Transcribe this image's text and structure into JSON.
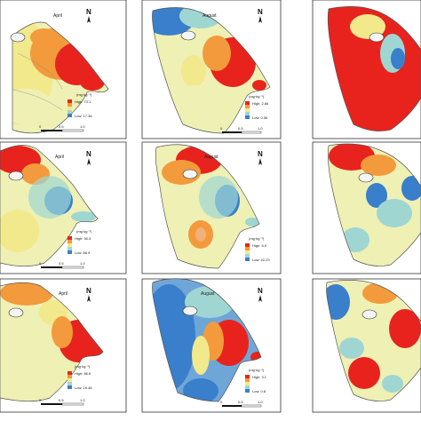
{
  "panels": [
    {
      "id": "p1",
      "month": "April",
      "legend_title": "(mg·kg⁻¹)",
      "high": "High: 73.1",
      "low": "Low: 17.36",
      "scale": [
        "0",
        "0.5",
        "1.0"
      ],
      "scheme": "east-red"
    },
    {
      "id": "p2",
      "month": "August",
      "legend_title": "(mg·kg⁻¹)",
      "high": "High: 2.66",
      "low": "Low: 0.56",
      "scale": [
        "0",
        "0.5",
        "1.0"
      ],
      "scheme": "west-blue-east-red"
    },
    {
      "id": "p3",
      "month": "",
      "legend_title": "",
      "high": "",
      "low": "",
      "scale": [
        "",
        ""
      ],
      "scheme": "mostly-red"
    },
    {
      "id": "p4",
      "month": "April",
      "legend_title": "(mg·kg⁻¹)",
      "high": "High: 95.3",
      "low": "Low: 86.5",
      "scale": [
        "0",
        "0.5",
        "1.0"
      ],
      "scheme": "north-red-east-blue"
    },
    {
      "id": "p5",
      "month": "August",
      "legend_title": "(mg·kg⁻¹)",
      "high": "High: 6.9",
      "low": "Low: 42.29",
      "scale": [
        "0",
        "0.5",
        "1.0"
      ],
      "scheme": "north-red-east-blue"
    },
    {
      "id": "p6",
      "month": "",
      "legend_title": "",
      "high": "",
      "low": "",
      "scale": [
        "",
        ""
      ],
      "scheme": "red-blue-mix"
    },
    {
      "id": "p7",
      "month": "April",
      "legend_title": "(mg·kg⁻¹)",
      "high": "High: 86.6",
      "low": "Low: 16.46",
      "scale": [
        "0",
        "0.5",
        "1.0"
      ],
      "scheme": "east-red"
    },
    {
      "id": "p8",
      "month": "August",
      "legend_title": "(mg·kg⁻¹)",
      "high": "High: 3.1",
      "low": "Low: 0.8",
      "scale": [
        "0",
        "0.5",
        "1.0"
      ],
      "scheme": "blue-east-red"
    },
    {
      "id": "p9",
      "month": "",
      "legend_title": "",
      "high": "",
      "low": "",
      "scale": [
        "",
        ""
      ],
      "scheme": "red-blue-mix"
    }
  ],
  "north_label": "N",
  "colors": {
    "red": "#e8231d",
    "orange": "#f39a3c",
    "yellow": "#f2e98c",
    "lightyellow": "#eef0b4",
    "cyan": "#9fd6d2",
    "blue": "#3a7fcb",
    "frame": "#333333"
  }
}
